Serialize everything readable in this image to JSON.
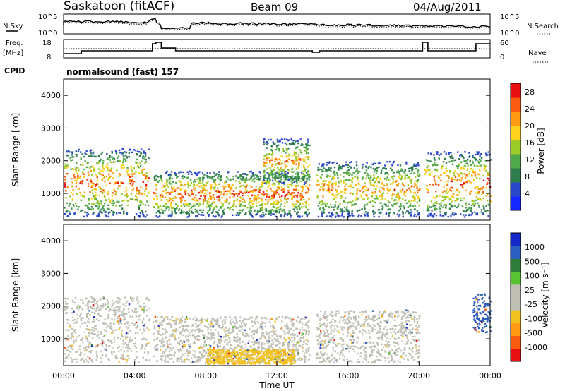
{
  "header": {
    "station": "Saskatoon (fitACF)",
    "beam": "Beam 09",
    "date": "04/Aug/2011"
  },
  "aux_panels": {
    "nsky_label": "N.Sky",
    "nsky_top_tick": "10^5",
    "nsky_bottom_tick": "10^0",
    "nsearch_label": "N.Search",
    "nsearch_top_tick": "10^5",
    "nsearch_bottom_tick": "10^0",
    "freq_label": "Freq.",
    "freq_unit": "[MHz]",
    "freq_top_tick": "18",
    "freq_bottom_tick": "8",
    "nave_label": "Nave",
    "nave_top_tick": "60",
    "nave_bottom_tick": "0",
    "cpid_label": "CPID",
    "cpid_value": "normalsound (fast) 157"
  },
  "colors": {
    "power_scale": [
      "#1428ff",
      "#2a48c8",
      "#2e7d4f",
      "#4fa84a",
      "#9ccc2a",
      "#ffd21e",
      "#ff9c14",
      "#f85a10",
      "#e81010"
    ],
    "velocity_scale": [
      "#e81010",
      "#f85a10",
      "#ff9c14",
      "#f2c21e",
      "#bfbfb4",
      "#bfbfb4",
      "#58c232",
      "#2f7d3a",
      "#2a5fbf",
      "#1428c8"
    ]
  },
  "chart_data": [
    {
      "type": "heatmap",
      "quantity": "Power",
      "ylabel": "Slant Range [km]",
      "xlim": [
        "00:00",
        "24:00"
      ],
      "ylim": [
        180,
        4500
      ],
      "y_ticks": [
        "1000",
        "2000",
        "3000",
        "4000"
      ],
      "colorbar": {
        "label": "Power [dB]",
        "ticks": [
          "4",
          "8",
          "12",
          "16",
          "20",
          "24",
          "28"
        ],
        "range": [
          0,
          30
        ]
      },
      "echo_regions": [
        {
          "t_start": 0.0,
          "t_end": 4.8,
          "r_min": 300,
          "r_max": 2400,
          "peak_db": 28
        },
        {
          "t_start": 5.0,
          "t_end": 13.8,
          "r_min": 300,
          "r_max": 1700,
          "peak_db": 28
        },
        {
          "t_start": 11.2,
          "t_end": 13.8,
          "r_min": 1300,
          "r_max": 2700,
          "peak_db": 24
        },
        {
          "t_start": 14.2,
          "t_end": 20.0,
          "r_min": 300,
          "r_max": 2000,
          "peak_db": 24
        },
        {
          "t_start": 20.3,
          "t_end": 24.0,
          "r_min": 300,
          "r_max": 2300,
          "peak_db": 28
        }
      ]
    },
    {
      "type": "heatmap",
      "quantity": "Velocity",
      "ylabel": "Slant Range [km]",
      "xlabel": "Time UT",
      "xlim": [
        "00:00",
        "24:00"
      ],
      "ylim": [
        180,
        4500
      ],
      "x_ticks": [
        "00:00",
        "04:00",
        "08:00",
        "12:00",
        "16:00",
        "20:00",
        "00:00"
      ],
      "y_ticks": [
        "1000",
        "2000",
        "3000",
        "4000"
      ],
      "colorbar": {
        "label": "Velocity [m s⁻¹]",
        "ticks": [
          "1000",
          "500",
          "100",
          "25",
          "-25",
          "-100",
          "-500",
          "-1000"
        ]
      },
      "echo_regions": [
        {
          "t_start": 0.0,
          "t_end": 4.8,
          "r_min": 300,
          "r_max": 2300,
          "dominant": "-25 to 25"
        },
        {
          "t_start": 5.0,
          "t_end": 13.8,
          "r_min": 300,
          "r_max": 1700,
          "dominant": "-25 to 25"
        },
        {
          "t_start": 8.0,
          "t_end": 13.0,
          "r_min": 250,
          "r_max": 700,
          "dominant": "-100 to -25"
        },
        {
          "t_start": 14.2,
          "t_end": 20.0,
          "r_min": 300,
          "r_max": 1900,
          "dominant": "-25 to 25"
        },
        {
          "t_start": 23.0,
          "t_end": 24.0,
          "r_min": 1200,
          "r_max": 2400,
          "dominant": "100 to 1000"
        }
      ]
    }
  ]
}
